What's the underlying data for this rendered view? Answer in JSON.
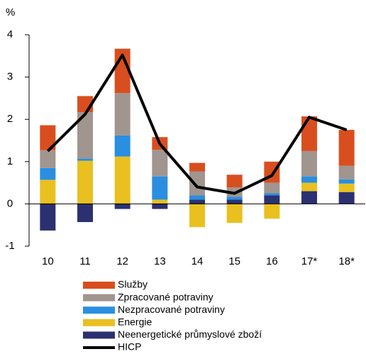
{
  "chart_data": {
    "type": "bar",
    "stacked": true,
    "y_label": "%",
    "categories": [
      "10",
      "11",
      "12",
      "13",
      "14",
      "15",
      "16",
      "17*",
      "18*"
    ],
    "ylim": [
      -1,
      4
    ],
    "yticks": [
      -1,
      0,
      1,
      2,
      3,
      4
    ],
    "series": [
      {
        "name": "Služby",
        "color": "#d94e1f",
        "values": [
          0.59,
          0.38,
          1.05,
          0.3,
          0.2,
          0.3,
          0.5,
          0.82,
          0.85
        ]
      },
      {
        "name": "Zpracované potraviny",
        "color": "#a0958f",
        "values": [
          0.42,
          1.1,
          1.0,
          0.63,
          0.57,
          0.22,
          0.25,
          0.6,
          0.32
        ]
      },
      {
        "name": "Nezpracované potraviny",
        "color": "#2a8fe0",
        "values": [
          0.28,
          0.05,
          0.5,
          0.55,
          0.1,
          0.07,
          0.05,
          0.15,
          0.1
        ]
      },
      {
        "name": "Energie",
        "color": "#e9c020",
        "values": [
          0.57,
          1.02,
          1.12,
          0.1,
          -0.55,
          -0.45,
          -0.35,
          0.2,
          0.2
        ]
      },
      {
        "name": "Neenergetické průmyslové zboží",
        "color": "#2b3170",
        "values": [
          -0.63,
          -0.43,
          -0.12,
          -0.12,
          0.1,
          0.1,
          0.2,
          0.3,
          0.28
        ]
      },
      {
        "name": "HICP",
        "color": "#000000",
        "type": "line",
        "values": [
          1.25,
          2.12,
          3.52,
          1.42,
          0.4,
          0.25,
          0.67,
          2.05,
          1.75
        ]
      }
    ]
  }
}
